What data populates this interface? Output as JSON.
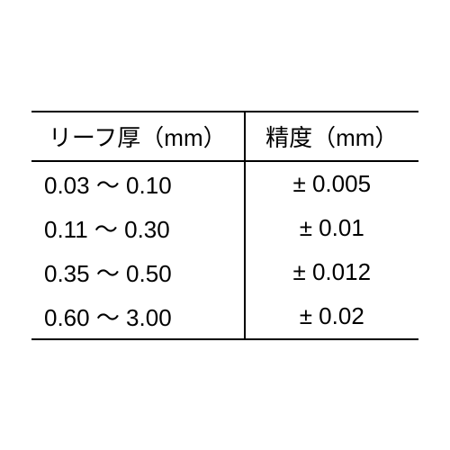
{
  "table": {
    "headers": {
      "col1": "リーフ厚（mm）",
      "col2": "精度（mm）"
    },
    "rows": [
      {
        "thickness": "0.03 〜 0.10",
        "precision": "± 0.005"
      },
      {
        "thickness": "0.11 〜 0.30",
        "precision": "± 0.01"
      },
      {
        "thickness": "0.35 〜 0.50",
        "precision": "± 0.012"
      },
      {
        "thickness": "0.60 〜 3.00",
        "precision": "± 0.02"
      }
    ],
    "styling": {
      "border_color": "#000000",
      "border_width": 2,
      "background_color": "#ffffff",
      "text_color": "#000000",
      "header_fontsize": 26,
      "cell_fontsize": 26,
      "col1_width_pct": 55,
      "col2_width_pct": 45,
      "col1_align": "left",
      "col2_align": "center"
    }
  }
}
